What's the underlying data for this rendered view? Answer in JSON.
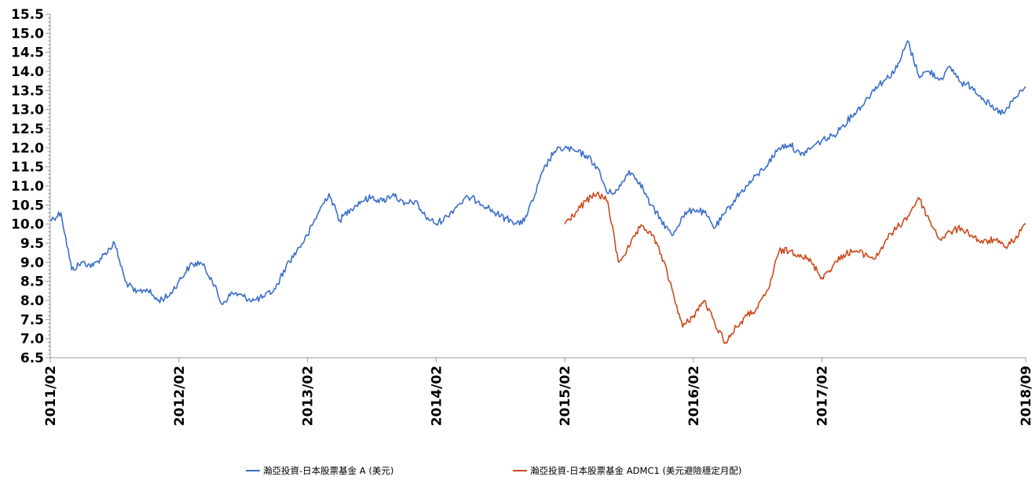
{
  "chart_data": {
    "type": "line",
    "title": "",
    "xlabel": "",
    "ylabel": "",
    "ylim": [
      6.5,
      15.5
    ],
    "y_ticks": [
      "15.5",
      "15.0",
      "14.5",
      "14.0",
      "13.5",
      "13.0",
      "12.5",
      "12.0",
      "11.5",
      "11.0",
      "10.5",
      "10.0",
      "9.5",
      "9.0",
      "8.5",
      "8.0",
      "7.5",
      "7.0",
      "6.5"
    ],
    "x_tick_labels": [
      "2011/02",
      "2012/02",
      "2013/02",
      "2014/02",
      "2015/02",
      "2016/02",
      "2017/02",
      "2018/09"
    ],
    "x_range": [
      "2011-02",
      "2018-09"
    ],
    "grid": false,
    "legend_position": "bottom",
    "series": [
      {
        "name": "瀚亞投資-日本股票基金 A (美元)",
        "color": "#3b6fc8",
        "x": [
          "2011-02",
          "2011-03",
          "2011-04",
          "2011-05",
          "2011-06",
          "2011-07",
          "2011-08",
          "2011-09",
          "2011-10",
          "2011-11",
          "2011-12",
          "2012-01",
          "2012-02",
          "2012-03",
          "2012-04",
          "2012-05",
          "2012-06",
          "2012-07",
          "2012-08",
          "2012-09",
          "2012-10",
          "2012-11",
          "2012-12",
          "2013-01",
          "2013-02",
          "2013-03",
          "2013-04",
          "2013-05",
          "2013-06",
          "2013-07",
          "2013-08",
          "2013-09",
          "2013-10",
          "2013-11",
          "2013-12",
          "2014-01",
          "2014-02",
          "2014-03",
          "2014-04",
          "2014-05",
          "2014-06",
          "2014-07",
          "2014-08",
          "2014-09",
          "2014-10",
          "2014-11",
          "2014-12",
          "2015-01",
          "2015-02",
          "2015-03",
          "2015-04",
          "2015-05",
          "2015-06",
          "2015-07",
          "2015-08",
          "2015-09",
          "2015-10",
          "2015-11",
          "2015-12",
          "2016-01",
          "2016-02",
          "2016-03",
          "2016-04",
          "2016-05",
          "2016-06",
          "2016-07",
          "2016-08",
          "2016-09",
          "2016-10",
          "2016-11",
          "2016-12",
          "2017-01",
          "2017-02",
          "2017-03",
          "2017-04",
          "2017-05",
          "2017-06",
          "2017-07",
          "2017-08",
          "2017-09",
          "2017-10",
          "2017-11",
          "2017-12",
          "2018-01",
          "2018-02",
          "2018-03",
          "2018-04",
          "2018-05",
          "2018-06",
          "2018-07",
          "2018-08",
          "2018-09"
        ],
        "y": [
          10.1,
          10.3,
          8.8,
          9.0,
          8.9,
          9.2,
          9.5,
          8.5,
          8.2,
          8.3,
          8.0,
          8.1,
          8.5,
          8.9,
          9.0,
          8.6,
          7.9,
          8.2,
          8.1,
          8.0,
          8.1,
          8.3,
          8.9,
          9.3,
          9.7,
          10.3,
          10.8,
          10.1,
          10.4,
          10.6,
          10.7,
          10.6,
          10.8,
          10.5,
          10.6,
          10.2,
          10.0,
          10.2,
          10.5,
          10.7,
          10.6,
          10.4,
          10.2,
          10.1,
          10.0,
          10.6,
          11.4,
          11.9,
          12.0,
          11.9,
          11.8,
          11.5,
          10.8,
          10.9,
          11.4,
          11.1,
          10.5,
          10.1,
          9.7,
          10.2,
          10.4,
          10.3,
          9.9,
          10.3,
          10.7,
          11.0,
          11.3,
          11.6,
          12.0,
          12.1,
          11.8,
          12.0,
          12.2,
          12.3,
          12.6,
          12.9,
          13.2,
          13.6,
          13.8,
          14.1,
          14.8,
          13.9,
          14.0,
          13.8,
          14.1,
          13.7,
          13.6,
          13.3,
          13.0,
          12.9,
          13.3,
          13.6
        ]
      },
      {
        "name": "瀚亞投資-日本股票基金 ADMC1 (美元避險穩定月配)",
        "color": "#cc4a1c",
        "x": [
          "2015-02",
          "2015-03",
          "2015-04",
          "2015-05",
          "2015-06",
          "2015-07",
          "2015-08",
          "2015-09",
          "2015-10",
          "2015-11",
          "2015-12",
          "2016-01",
          "2016-02",
          "2016-03",
          "2016-04",
          "2016-05",
          "2016-06",
          "2016-07",
          "2016-08",
          "2016-09",
          "2016-10",
          "2016-11",
          "2016-12",
          "2017-01",
          "2017-02",
          "2017-03",
          "2017-04",
          "2017-05",
          "2017-06",
          "2017-07",
          "2017-08",
          "2017-09",
          "2017-10",
          "2017-11",
          "2017-12",
          "2018-01",
          "2018-02",
          "2018-03",
          "2018-04",
          "2018-05",
          "2018-06",
          "2018-07",
          "2018-08",
          "2018-09"
        ],
        "y": [
          10.0,
          10.3,
          10.6,
          10.8,
          10.6,
          9.0,
          9.4,
          9.9,
          9.8,
          9.2,
          8.3,
          7.3,
          7.6,
          8.0,
          7.4,
          6.9,
          7.3,
          7.6,
          7.8,
          8.3,
          9.3,
          9.3,
          9.2,
          9.0,
          8.6,
          8.9,
          9.2,
          9.3,
          9.2,
          9.1,
          9.6,
          9.9,
          10.2,
          10.7,
          10.1,
          9.6,
          9.8,
          9.9,
          9.7,
          9.5,
          9.6,
          9.4,
          9.6,
          10.0
        ]
      }
    ]
  }
}
